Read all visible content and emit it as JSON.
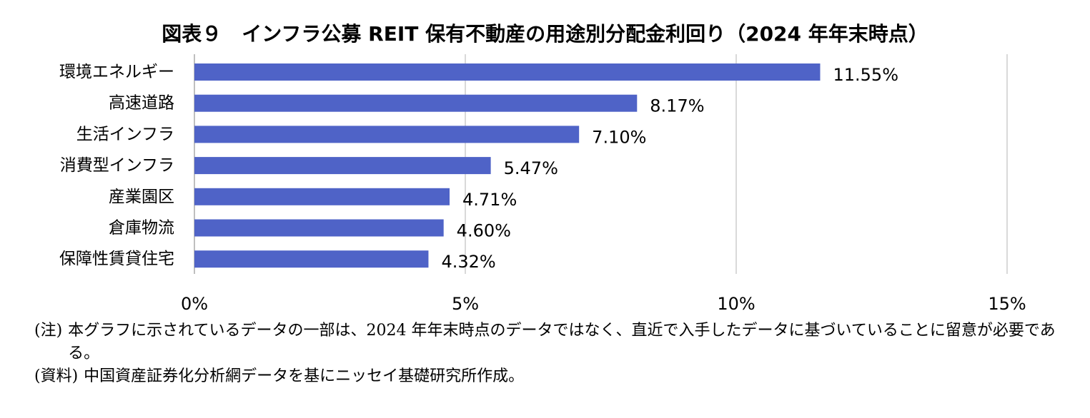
{
  "title": "図表９　インフラ公募 REIT 保有不動産の用途別分配金利回り（2024 年年末時点）",
  "chart_data": {
    "type": "bar",
    "orientation": "horizontal",
    "categories": [
      "環境エネルギー",
      "高速道路",
      "生活インフラ",
      "消費型インフラ",
      "産業園区",
      "倉庫物流",
      "保障性賃貸住宅"
    ],
    "values": [
      11.55,
      8.17,
      7.1,
      5.47,
      4.71,
      4.6,
      4.32
    ],
    "data_labels": [
      "11.55%",
      "8.17%",
      "7.10%",
      "5.47%",
      "4.71%",
      "4.60%",
      "4.32%"
    ],
    "x_ticks": [
      0,
      5,
      10,
      15
    ],
    "x_tick_labels": [
      "0%",
      "5%",
      "10%",
      "15%"
    ],
    "xlim": [
      0,
      15
    ],
    "grid": true,
    "bar_color": "#4f63c7",
    "grid_color": "#d9d9d9"
  },
  "notes": {
    "note_tag": "(注)",
    "note_text": "本グラフに示されているデータの一部は、2024 年年末時点のデータではなく、直近で入手したデータに基づいていることに留意が必要である。",
    "source_tag": "(資料)",
    "source_text": "中国資産証券化分析網データを基にニッセイ基礎研究所作成。"
  }
}
